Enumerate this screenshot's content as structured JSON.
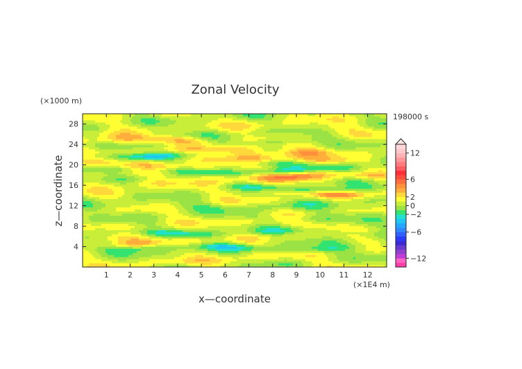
{
  "chart_data": {
    "type": "heatmap",
    "title": "Zonal Velocity",
    "xlabel": "x—coordinate",
    "ylabel": "z—coordinate",
    "x_unit": "(×1E4 m)",
    "y_unit": "(×1000 m)",
    "time_label": "198000 s",
    "xlim": [
      0,
      12.8
    ],
    "ylim": [
      0,
      30
    ],
    "xticks": [
      "1",
      "2",
      "3",
      "4",
      "5",
      "6",
      "7",
      "8",
      "9",
      "10",
      "11",
      "12"
    ],
    "yticks": [
      "4",
      "8",
      "12",
      "16",
      "20",
      "24",
      "28"
    ],
    "colorbar": {
      "ticks": [
        "12",
        "6",
        "2",
        "0",
        "−2",
        "−6",
        "−12"
      ],
      "tick_values": [
        12,
        6,
        2,
        0,
        -2,
        -6,
        -12
      ],
      "bounds": [
        -14,
        -13,
        -12,
        -11,
        -10,
        -9,
        -8,
        -7,
        -6,
        -5,
        -4,
        -3,
        -2,
        -1,
        0,
        1,
        2,
        3,
        4,
        5,
        6,
        7,
        8,
        9,
        10,
        11,
        12,
        13,
        14
      ],
      "colors": [
        "#ff3fa8",
        "#ff62c4",
        "#c23fd7",
        "#9040cf",
        "#6a3ad0",
        "#3b2bd4",
        "#2a3bff",
        "#2f61ff",
        "#2f86ff",
        "#23a7ff",
        "#1fc6f0",
        "#22e0d0",
        "#33e36f",
        "#9be245",
        "#c9ee3a",
        "#ffff33",
        "#ffd83c",
        "#ffae3c",
        "#ff8f3a",
        "#ff6e3d",
        "#ff4d3d",
        "#ff2f3a",
        "#ff5a60",
        "#ff7a7d",
        "#ff979a",
        "#ffb3b6",
        "#ffc8ca",
        "#ffd9da"
      ],
      "extend": "max"
    },
    "bands": [
      {
        "z": 1.5,
        "amp": 1.0,
        "width": 0.7,
        "x_from": 2.0,
        "x_to": 9.0
      },
      {
        "z": 3.8,
        "amp": -2.5,
        "width": 0.7,
        "x_from": 0.0,
        "x_to": 12.8
      },
      {
        "z": 4.8,
        "amp": 3.0,
        "width": 0.8,
        "x_from": 1.5,
        "x_to": 4.0
      },
      {
        "z": 5.6,
        "amp": 2.5,
        "width": 0.6,
        "x_from": 0.0,
        "x_to": 1.8
      },
      {
        "z": 6.8,
        "amp": -2.0,
        "width": 0.6,
        "x_from": 0.5,
        "x_to": 12.0
      },
      {
        "z": 8.5,
        "amp": 2.5,
        "width": 0.7,
        "x_from": 7.0,
        "x_to": 9.5
      },
      {
        "z": 10.0,
        "amp": -1.5,
        "width": 0.8,
        "x_from": 7.0,
        "x_to": 12.8
      },
      {
        "z": 12.0,
        "amp": -1.0,
        "width": 0.8,
        "x_from": 0.0,
        "x_to": 12.8
      },
      {
        "z": 14.5,
        "amp": 3.0,
        "width": 0.6,
        "x_from": 8.0,
        "x_to": 12.8
      },
      {
        "z": 15.5,
        "amp": -2.5,
        "width": 0.6,
        "x_from": 6.0,
        "x_to": 12.8
      },
      {
        "z": 16.5,
        "amp": 1.5,
        "width": 0.8,
        "x_from": 0.0,
        "x_to": 5.0
      },
      {
        "z": 17.8,
        "amp": 4.0,
        "width": 0.8,
        "x_from": 6.0,
        "x_to": 12.0
      },
      {
        "z": 18.8,
        "amp": -2.0,
        "width": 0.6,
        "x_from": 0.0,
        "x_to": 12.8
      },
      {
        "z": 20.2,
        "amp": 3.5,
        "width": 0.8,
        "x_from": 0.0,
        "x_to": 3.5
      },
      {
        "z": 20.0,
        "amp": -2.0,
        "width": 0.6,
        "x_from": 7.0,
        "x_to": 12.0
      },
      {
        "z": 21.2,
        "amp": 2.5,
        "width": 0.7,
        "x_from": 4.0,
        "x_to": 11.0
      },
      {
        "z": 22.0,
        "amp": -4.0,
        "width": 0.7,
        "x_from": 0.0,
        "x_to": 4.5
      },
      {
        "z": 22.8,
        "amp": 4.5,
        "width": 0.9,
        "x_from": 5.0,
        "x_to": 10.0
      },
      {
        "z": 23.5,
        "amp": -3.0,
        "width": 0.6,
        "x_from": 3.0,
        "x_to": 5.0
      },
      {
        "z": 24.8,
        "amp": 5.0,
        "width": 0.9,
        "x_from": 1.0,
        "x_to": 4.5
      },
      {
        "z": 24.7,
        "amp": -3.5,
        "width": 0.6,
        "x_from": 7.0,
        "x_to": 9.5
      },
      {
        "z": 26.3,
        "amp": -2.0,
        "width": 0.6,
        "x_from": 1.5,
        "x_to": 4.0
      },
      {
        "z": 26.0,
        "amp": 2.0,
        "width": 0.6,
        "x_from": 0.0,
        "x_to": 1.5
      },
      {
        "z": 27.5,
        "amp": 1.5,
        "width": 0.8,
        "x_from": 7.5,
        "x_to": 11.0
      }
    ],
    "background_value": 0.6
  }
}
